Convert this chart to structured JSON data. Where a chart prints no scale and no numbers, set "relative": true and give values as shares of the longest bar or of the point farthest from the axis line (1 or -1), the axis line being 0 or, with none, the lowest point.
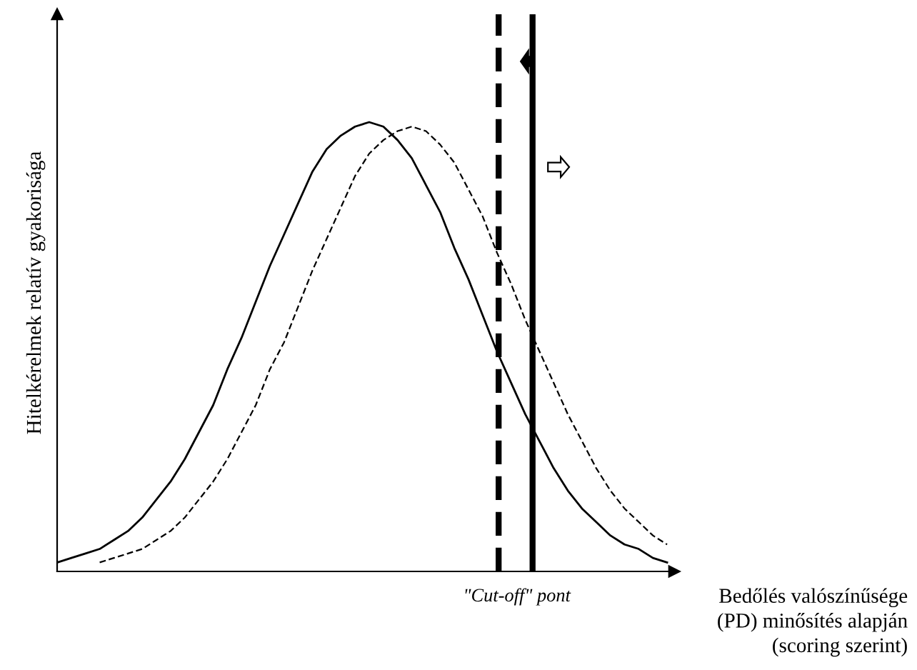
{
  "chart_data": {
    "type": "line",
    "relative": true,
    "xlabel": "Bedőlés valószínűsége\n(PD) minősítés alapján\n(scoring szerint)",
    "ylabel": "Hitelkérelmek relatív gyakorisága",
    "categories": [
      null,
      null,
      null,
      null,
      null,
      null,
      null,
      null,
      null,
      null,
      null,
      null,
      null,
      null,
      null,
      null,
      null,
      null,
      null,
      null,
      null,
      null,
      null,
      null,
      null,
      null,
      null,
      null,
      null,
      null,
      null,
      null,
      null,
      null,
      null,
      null,
      null,
      null,
      null,
      null,
      null,
      null,
      null,
      null
    ],
    "series": [
      {
        "color": "#000000",
        "line_style": "solid",
        "values": [
          0.02,
          0.03,
          0.04,
          0.05,
          0.07,
          0.09,
          0.12,
          0.16,
          0.2,
          0.25,
          0.31,
          0.37,
          0.45,
          0.52,
          0.6,
          0.68,
          0.75,
          0.82,
          0.89,
          0.94,
          0.97,
          0.99,
          1.0,
          0.99,
          0.96,
          0.92,
          0.86,
          0.8,
          0.72,
          0.65,
          0.57,
          0.49,
          0.42,
          0.35,
          0.29,
          0.23,
          0.18,
          0.14,
          0.11,
          0.08,
          0.06,
          0.05,
          0.03,
          0.02
        ]
      },
      {
        "color": "#000000",
        "line_style": "dashed",
        "values": [
          null,
          null,
          null,
          0.02,
          0.03,
          0.04,
          0.05,
          0.07,
          0.09,
          0.12,
          0.16,
          0.2,
          0.25,
          0.31,
          0.37,
          0.45,
          0.51,
          0.59,
          0.67,
          0.74,
          0.81,
          0.88,
          0.93,
          0.96,
          0.98,
          0.99,
          0.98,
          0.95,
          0.91,
          0.85,
          0.79,
          0.71,
          0.64,
          0.56,
          0.49,
          0.42,
          0.35,
          0.29,
          0.23,
          0.18,
          0.14,
          0.11,
          0.08,
          0.06
        ]
      }
    ],
    "annotations": [
      "\"Cut-off\" pont"
    ],
    "legend": false,
    "marker": "none"
  }
}
